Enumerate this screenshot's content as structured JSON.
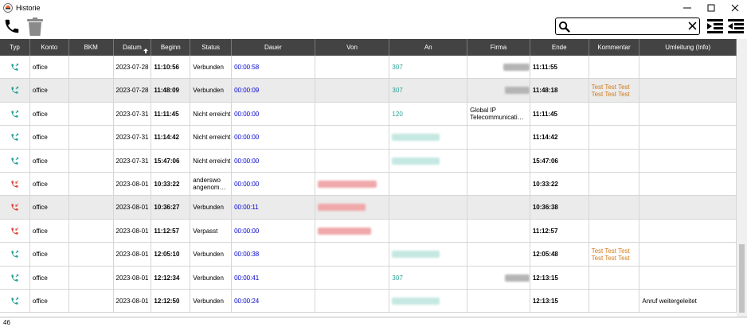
{
  "window": {
    "title": "Historie",
    "icon": "app-logo-icon",
    "controls": [
      "minimize-icon",
      "maximize-icon",
      "close-icon"
    ]
  },
  "toolbar": {
    "call_icon": "phone-icon",
    "delete_icon": "trash-icon",
    "search": {
      "value": "",
      "placeholder": ""
    },
    "expand_icon": "indent-more-icon",
    "collapse_icon": "indent-less-icon"
  },
  "columns": [
    "Typ",
    "Konto",
    "BKM",
    "Datum",
    "Beginn",
    "Status",
    "Dauer",
    "Von",
    "An",
    "Firma",
    "Ende",
    "Kommentar",
    "Umleitung (Info)"
  ],
  "sort": {
    "column": "Datum",
    "direction": "ascending"
  },
  "colors": {
    "header_bg": "#434343",
    "outgoing": "#2aa198",
    "missed": "#e0443a",
    "duration": "#0000cc",
    "comment": "#d07a1a"
  },
  "rows": [
    {
      "type": "outgoing",
      "konto": "office",
      "bkm": "",
      "datum": "2023-07-28",
      "beginn": "11:10:56",
      "status": "Verbunden",
      "dauer": "00:00:58",
      "von": "",
      "an": "307",
      "firma": "",
      "ende": "11:11:55",
      "kommentar": "",
      "umleitung": ""
    },
    {
      "type": "outgoing",
      "konto": "office",
      "bkm": "",
      "datum": "2023-07-28",
      "beginn": "11:48:09",
      "status": "Verbunden",
      "dauer": "00:00:09",
      "von": "",
      "an": "307",
      "firma": "",
      "ende": "11:48:18",
      "kommentar": "Test Test Test Test Test Test",
      "umleitung": ""
    },
    {
      "type": "outgoing",
      "konto": "office",
      "bkm": "",
      "datum": "2023-07-31",
      "beginn": "11:11:45",
      "status": "Nicht erreicht",
      "dauer": "00:00:00",
      "von": "",
      "an": "120",
      "firma": "Global IP Telecommunicati…",
      "ende": "11:11:45",
      "kommentar": "",
      "umleitung": ""
    },
    {
      "type": "outgoing",
      "konto": "office",
      "bkm": "",
      "datum": "2023-07-31",
      "beginn": "11:14:42",
      "status": "Nicht erreicht",
      "dauer": "00:00:00",
      "von": "",
      "an": "",
      "firma": "",
      "ende": "11:14:42",
      "kommentar": "",
      "umleitung": ""
    },
    {
      "type": "outgoing",
      "konto": "office",
      "bkm": "",
      "datum": "2023-07-31",
      "beginn": "15:47:06",
      "status": "Nicht erreicht",
      "dauer": "00:00:00",
      "von": "",
      "an": "",
      "firma": "",
      "ende": "15:47:06",
      "kommentar": "",
      "umleitung": ""
    },
    {
      "type": "incoming",
      "konto": "office",
      "bkm": "",
      "datum": "2023-08-01",
      "beginn": "10:33:22",
      "status": "anderswo angenom…",
      "dauer": "00:00:00",
      "von": "",
      "an": "",
      "firma": "",
      "ende": "10:33:22",
      "kommentar": "",
      "umleitung": ""
    },
    {
      "type": "incoming",
      "konto": "office",
      "bkm": "",
      "datum": "2023-08-01",
      "beginn": "10:36:27",
      "status": "Verbunden",
      "dauer": "00:00:11",
      "von": "",
      "an": "",
      "firma": "",
      "ende": "10:36:38",
      "kommentar": "",
      "umleitung": ""
    },
    {
      "type": "incoming",
      "konto": "office",
      "bkm": "",
      "datum": "2023-08-01",
      "beginn": "11:12:57",
      "status": "Verpasst",
      "dauer": "00:00:00",
      "von": "",
      "an": "",
      "firma": "",
      "ende": "11:12:57",
      "kommentar": "",
      "umleitung": ""
    },
    {
      "type": "outgoing",
      "konto": "office",
      "bkm": "",
      "datum": "2023-08-01",
      "beginn": "12:05:10",
      "status": "Verbunden",
      "dauer": "00:00:38",
      "von": "",
      "an": "",
      "firma": "",
      "ende": "12:05:48",
      "kommentar": "Test Test Test Test Test Test",
      "umleitung": ""
    },
    {
      "type": "outgoing",
      "konto": "office",
      "bkm": "",
      "datum": "2023-08-01",
      "beginn": "12:12:34",
      "status": "Verbunden",
      "dauer": "00:00:41",
      "von": "",
      "an": "307",
      "firma": "",
      "ende": "12:13:15",
      "kommentar": "",
      "umleitung": ""
    },
    {
      "type": "outgoing",
      "konto": "office",
      "bkm": "",
      "datum": "2023-08-01",
      "beginn": "12:12:50",
      "status": "Verbunden",
      "dauer": "00:00:24",
      "von": "",
      "an": "",
      "firma": "",
      "ende": "12:13:15",
      "kommentar": "",
      "umleitung": "Anruf weitergeleitet"
    }
  ],
  "status_bar": {
    "count": "46"
  }
}
